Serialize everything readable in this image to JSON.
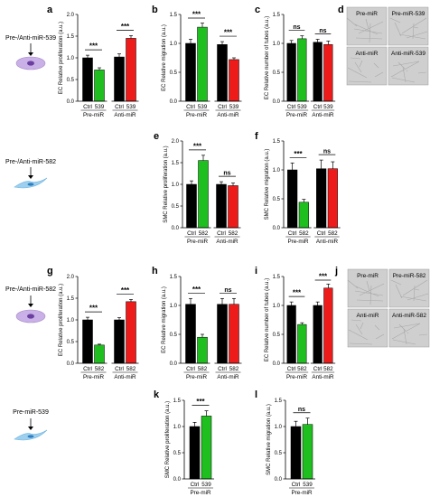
{
  "colors": {
    "ctrl": "#000000",
    "treat_green": "#1fbf1f",
    "treat_red": "#ee1b1b",
    "cell_purple": "#c9b0e6",
    "cell_blue": "#9ed0ee",
    "micro_bg": "#cfcfcf"
  },
  "rows": [
    {
      "label": "Pre-/Anti-miR-539",
      "cell_type": "ec"
    },
    {
      "label": "Pre-/Anti-miR-582",
      "cell_type": "smc"
    },
    {
      "label": "Pre-/Anti-miR-582",
      "cell_type": "ec"
    },
    {
      "label": "Pre-miR-539",
      "cell_type": "smc"
    }
  ],
  "micrographs": {
    "d": {
      "letter": "d",
      "captions": [
        "Pre-miR",
        "Pre-miR-539",
        "Anti-miR",
        "Anti-miR-539"
      ]
    },
    "j": {
      "letter": "j",
      "captions": [
        "Pre-miR",
        "Pre-miR-582",
        "Anti-miR",
        "Anti-miR-582"
      ]
    }
  },
  "chart_data": [
    {
      "panel": "a",
      "type": "bar",
      "ylabel": "EC Relative proliferation (a.u.)",
      "ylim": [
        0,
        2.0
      ],
      "yticks": [
        "0.0",
        "0.5",
        "1.0",
        "1.5",
        "2.0"
      ],
      "categories": [
        "Ctrl",
        "539",
        "Ctrl",
        "539"
      ],
      "groups": [
        "Pre-miR",
        "Anti-miR"
      ],
      "values": [
        1.0,
        0.72,
        1.02,
        1.45
      ],
      "errors": [
        0.06,
        0.05,
        0.07,
        0.06
      ],
      "colors": [
        "ctrl",
        "treat_green",
        "ctrl",
        "treat_red"
      ],
      "significance": [
        "***",
        "***"
      ]
    },
    {
      "panel": "b",
      "type": "bar",
      "ylabel": "EC Relative migration (a.u.)",
      "ylim": [
        0,
        1.5
      ],
      "yticks": [
        "0.0",
        "0.5",
        "1.0",
        "1.5"
      ],
      "categories": [
        "Ctrl",
        "539",
        "Ctrl",
        "539"
      ],
      "groups": [
        "Pre-miR",
        "Anti-miR"
      ],
      "values": [
        1.0,
        1.28,
        0.98,
        0.72
      ],
      "errors": [
        0.07,
        0.07,
        0.05,
        0.03
      ],
      "colors": [
        "ctrl",
        "treat_green",
        "ctrl",
        "treat_red"
      ],
      "significance": [
        "***",
        "***"
      ]
    },
    {
      "panel": "c",
      "type": "bar",
      "ylabel": "EC Relative number of tubes (a.u.)",
      "ylim": [
        0,
        1.5
      ],
      "yticks": [
        "0.0",
        "0.5",
        "1.0",
        "1.5"
      ],
      "categories": [
        "Ctrl",
        "539",
        "Ctrl",
        "539"
      ],
      "groups": [
        "Pre-miR",
        "Anti-miR"
      ],
      "values": [
        1.0,
        1.08,
        1.02,
        0.98
      ],
      "errors": [
        0.05,
        0.05,
        0.05,
        0.06
      ],
      "colors": [
        "ctrl",
        "treat_green",
        "ctrl",
        "treat_red"
      ],
      "significance": [
        "ns",
        "ns"
      ]
    },
    {
      "panel": "e",
      "type": "bar",
      "ylabel": "SMC Relative proliferation (a.u.)",
      "ylim": [
        0,
        2.0
      ],
      "yticks": [
        "0.0",
        "0.5",
        "1.0",
        "1.5",
        "2.0"
      ],
      "categories": [
        "Ctrl",
        "582",
        "Ctrl",
        "582"
      ],
      "groups": [
        "Pre-miR",
        "Anti-miR"
      ],
      "values": [
        1.0,
        1.55,
        1.0,
        0.97
      ],
      "errors": [
        0.08,
        0.12,
        0.06,
        0.06
      ],
      "colors": [
        "ctrl",
        "treat_green",
        "ctrl",
        "treat_red"
      ],
      "significance": [
        "***",
        "ns"
      ]
    },
    {
      "panel": "f",
      "type": "bar",
      "ylabel": "SMC Relative migration (a.u.)",
      "ylim": [
        0,
        1.5
      ],
      "yticks": [
        "0.0",
        "0.5",
        "1.0",
        "1.5"
      ],
      "categories": [
        "Ctrl",
        "582",
        "Ctrl",
        "582"
      ],
      "groups": [
        "Pre-miR",
        "Anti-miR"
      ],
      "values": [
        1.0,
        0.44,
        1.02,
        1.02
      ],
      "errors": [
        0.12,
        0.05,
        0.15,
        0.12
      ],
      "colors": [
        "ctrl",
        "treat_green",
        "ctrl",
        "treat_red"
      ],
      "significance": [
        "***",
        "ns"
      ]
    },
    {
      "panel": "g",
      "type": "bar",
      "ylabel": "EC Relative proliferation (a.u.)",
      "ylim": [
        0,
        2.0
      ],
      "yticks": [
        "0.0",
        "0.5",
        "1.0",
        "1.5",
        "2.0"
      ],
      "categories": [
        "Ctrl",
        "582",
        "Ctrl",
        "582"
      ],
      "groups": [
        "Pre-miR",
        "Anti-miR"
      ],
      "values": [
        1.0,
        0.42,
        1.0,
        1.42
      ],
      "errors": [
        0.06,
        0.02,
        0.05,
        0.05
      ],
      "colors": [
        "ctrl",
        "treat_green",
        "ctrl",
        "treat_red"
      ],
      "significance": [
        "***",
        "***"
      ]
    },
    {
      "panel": "h",
      "type": "bar",
      "ylabel": "EC Relative migration (a.u.)",
      "ylim": [
        0,
        1.5
      ],
      "yticks": [
        "0.0",
        "0.5",
        "1.0",
        "1.5"
      ],
      "categories": [
        "Ctrl",
        "582",
        "Ctrl",
        "582"
      ],
      "groups": [
        "Pre-miR",
        "Anti-miR"
      ],
      "values": [
        1.02,
        0.45,
        1.02,
        1.02
      ],
      "errors": [
        0.1,
        0.05,
        0.1,
        0.1
      ],
      "colors": [
        "ctrl",
        "treat_green",
        "ctrl",
        "treat_red"
      ],
      "significance": [
        "***",
        "ns"
      ]
    },
    {
      "panel": "i",
      "type": "bar",
      "ylabel": "EC Relative number of tubes (a.u.)",
      "ylim": [
        0,
        1.5
      ],
      "yticks": [
        "0.0",
        "0.5",
        "1.0",
        "1.5"
      ],
      "categories": [
        "Ctrl",
        "582",
        "Ctrl",
        "582"
      ],
      "groups": [
        "Pre-miR",
        "Anti-miR"
      ],
      "values": [
        1.0,
        0.67,
        1.0,
        1.3
      ],
      "errors": [
        0.06,
        0.03,
        0.06,
        0.07
      ],
      "colors": [
        "ctrl",
        "treat_green",
        "ctrl",
        "treat_red"
      ],
      "significance": [
        "***",
        "***"
      ]
    },
    {
      "panel": "k",
      "type": "bar",
      "ylabel": "SMC Relative proliferation (a.u.)",
      "ylim": [
        0,
        1.5
      ],
      "yticks": [
        "0.0",
        "0.5",
        "1.0",
        "1.5"
      ],
      "categories": [
        "Ctrl",
        "539"
      ],
      "groups": [
        "Pre-miR"
      ],
      "values": [
        1.0,
        1.2
      ],
      "errors": [
        0.08,
        0.1
      ],
      "colors": [
        "ctrl",
        "treat_green"
      ],
      "significance": [
        "***"
      ]
    },
    {
      "panel": "l",
      "type": "bar",
      "ylabel": "SMC Relative migration (a.u.)",
      "ylim": [
        0,
        1.5
      ],
      "yticks": [
        "0.0",
        "0.5",
        "1.0",
        "1.5"
      ],
      "categories": [
        "Ctrl",
        "539"
      ],
      "groups": [
        "Pre-miR"
      ],
      "values": [
        1.0,
        1.04
      ],
      "errors": [
        0.1,
        0.12
      ],
      "colors": [
        "ctrl",
        "treat_green"
      ],
      "significance": [
        "ns"
      ]
    }
  ]
}
